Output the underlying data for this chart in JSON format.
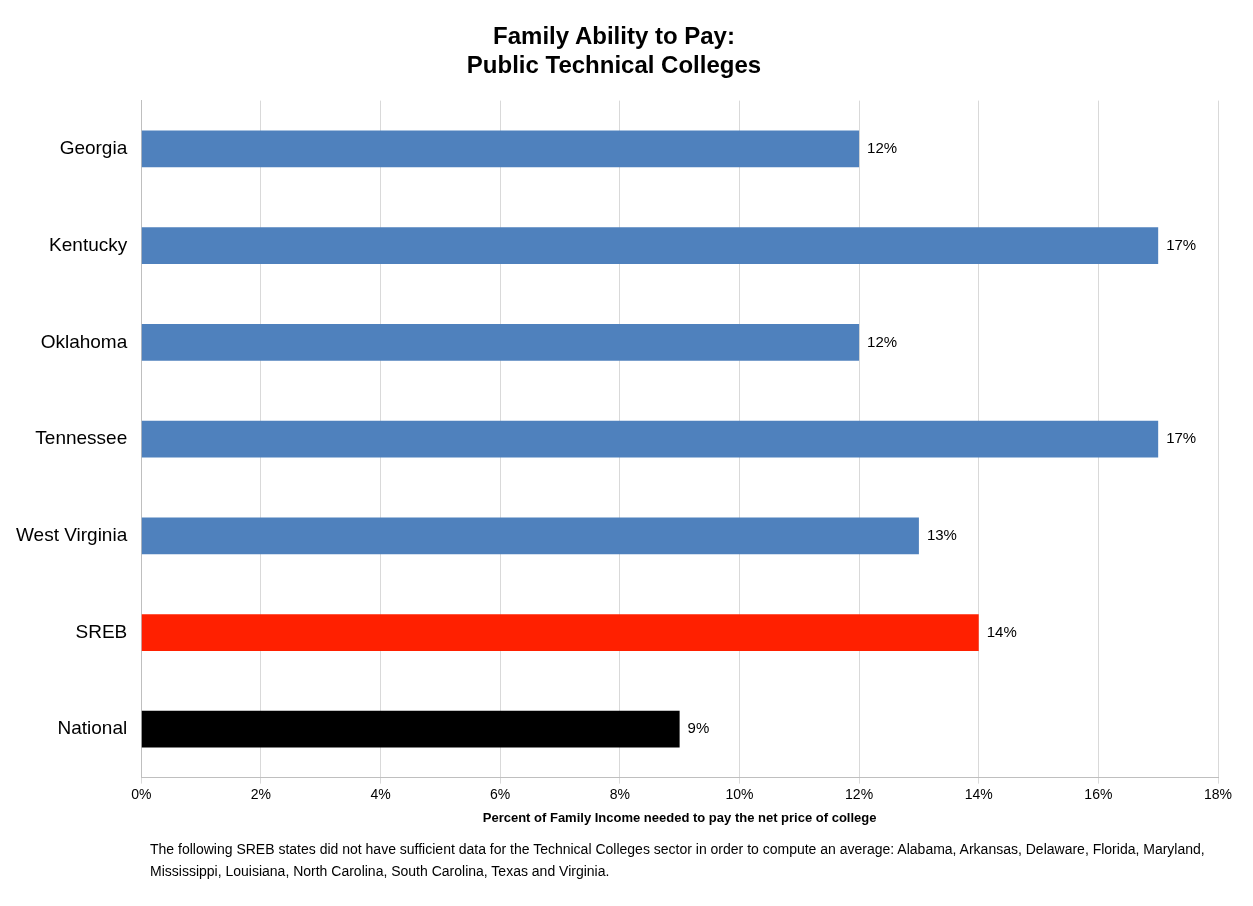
{
  "chart_data": {
    "type": "bar",
    "orientation": "horizontal",
    "title": "Family Ability to Pay:\nPublic Technical Colleges",
    "categories": [
      "Georgia",
      "Kentucky",
      "Oklahoma",
      "Tennessee",
      "West Virginia",
      "SREB",
      "National"
    ],
    "values": [
      12,
      17,
      12,
      17,
      13,
      14,
      9
    ],
    "colors": [
      "#4f81bd",
      "#4f81bd",
      "#4f81bd",
      "#4f81bd",
      "#4f81bd",
      "#ff2000",
      "#000000"
    ],
    "value_labels": [
      "12%",
      "17%",
      "12%",
      "17%",
      "13%",
      "14%",
      "9%"
    ],
    "xlim": [
      0,
      18
    ],
    "xticks": [
      {
        "value": 0,
        "label": "0%"
      },
      {
        "value": 2,
        "label": "2%"
      },
      {
        "value": 4,
        "label": "4%"
      },
      {
        "value": 6,
        "label": "6%"
      },
      {
        "value": 8,
        "label": "8%"
      },
      {
        "value": 10,
        "label": "10%"
      },
      {
        "value": 12,
        "label": "12%"
      },
      {
        "value": 14,
        "label": "14%"
      },
      {
        "value": 16,
        "label": "16%"
      },
      {
        "value": 18,
        "label": "18%"
      }
    ],
    "xlabel": "Percent of Family Income needed to pay the net price of college",
    "grid": "x",
    "legend": false,
    "annotations": [
      "The following SREB states did not have sufficient data for the Technical Colleges sector in order to compute an average: Alabama, Arkansas, Delaware,  Florida, Maryland, Mississippi, Louisiana,  North Carolina, South Carolina, Texas and Virginia."
    ]
  }
}
